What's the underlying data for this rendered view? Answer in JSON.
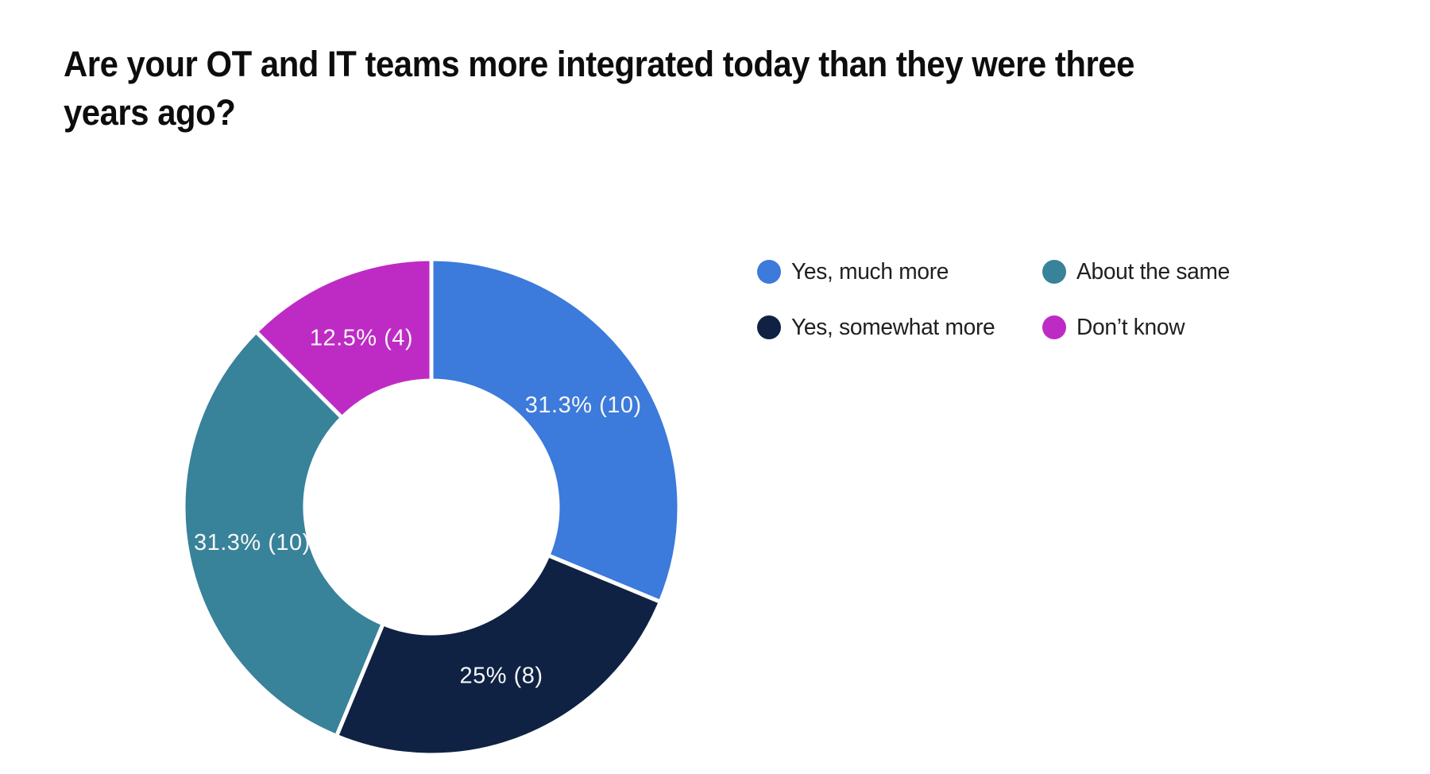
{
  "title": {
    "text": "Are your OT and IT teams more integrated today than they were three years ago?",
    "lines": [
      "Are your OT and IT teams more integrated today than they were three",
      "years ago?"
    ]
  },
  "chart_data": {
    "type": "pie",
    "subtype": "donut",
    "title": "Are your OT and IT teams more integrated today than they were three years ago?",
    "total_responses": 32,
    "start_angle_deg": 0,
    "direction": "clockwise",
    "inner_radius_ratio": 0.51,
    "grid": false,
    "legend_position": "top-right",
    "legend_order": [
      0,
      2,
      1,
      3
    ],
    "slices": [
      {
        "label": "Yes, much more",
        "percent": 31.3,
        "count": 10,
        "data_label": "31.3% (10)",
        "color": "#3C7ADB"
      },
      {
        "label": "Yes, somewhat more",
        "percent": 25,
        "count": 8,
        "data_label": "25% (8)",
        "color": "#0F2244"
      },
      {
        "label": "About the same",
        "percent": 31.3,
        "count": 10,
        "data_label": "31.3% (10)",
        "color": "#38829A"
      },
      {
        "label": "Don’t know",
        "percent": 12.5,
        "count": 4,
        "data_label": "12.5% (4)",
        "color": "#BE2BC4"
      }
    ],
    "slice_label_color": "#f7f7f7",
    "slice_gap_color": "#ffffff"
  }
}
